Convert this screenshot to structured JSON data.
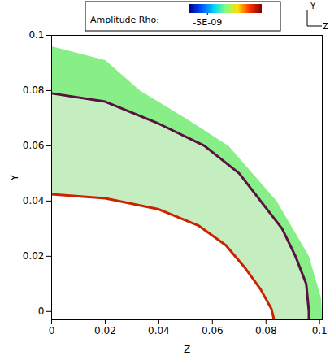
{
  "chart_data": {
    "type": "contour",
    "xlabel": "Z",
    "ylabel": "Y",
    "xlim": [
      0,
      0.101
    ],
    "ylim": [
      -0.003,
      0.1
    ],
    "xticks": [
      0,
      0.02,
      0.04,
      0.06,
      0.08,
      0.1
    ],
    "yticks": [
      0,
      0.02,
      0.04,
      0.06,
      0.08,
      0.1
    ],
    "series": [
      {
        "type": "area",
        "color": "#88ee88",
        "x": [
          0,
          0.02,
          0.033,
          0.05,
          0.066,
          0.084,
          0.096,
          0.1005,
          0.101,
          0.096,
          0.096,
          0.095,
          0.091,
          0.086,
          0.078,
          0.07,
          0.057,
          0.04,
          0.02,
          0
        ],
        "y": [
          0.096,
          0.091,
          0.08,
          0.07,
          0.06,
          0.04,
          0.02,
          0.005,
          -0.003,
          -0.003,
          0,
          0.01,
          0.02,
          0.03,
          0.04,
          0.05,
          0.06,
          0.068,
          0.076,
          0.079
        ]
      },
      {
        "type": "area",
        "color": "#c4eec0",
        "x": [
          0,
          0.02,
          0.04,
          0.057,
          0.07,
          0.078,
          0.086,
          0.091,
          0.095,
          0.096,
          0.096,
          0.083,
          0.082,
          0.078,
          0.072,
          0.065,
          0.055,
          0.04,
          0.02,
          0
        ],
        "y": [
          0.079,
          0.076,
          0.068,
          0.06,
          0.05,
          0.04,
          0.03,
          0.02,
          0.01,
          0,
          -0.003,
          -0.003,
          0.001,
          0.008,
          0.016,
          0.024,
          0.031,
          0.037,
          0.041,
          0.0425
        ]
      },
      {
        "type": "line",
        "color": "#5a1040",
        "x": [
          0,
          0.02,
          0.04,
          0.057,
          0.07,
          0.078,
          0.086,
          0.091,
          0.095,
          0.096,
          0.096
        ],
        "y": [
          0.079,
          0.076,
          0.068,
          0.06,
          0.05,
          0.04,
          0.03,
          0.02,
          0.01,
          0,
          -0.003
        ]
      },
      {
        "type": "line",
        "color": "#cc2200",
        "x": [
          0,
          0.02,
          0.04,
          0.055,
          0.065,
          0.072,
          0.078,
          0.082,
          0.083
        ],
        "y": [
          0.0425,
          0.041,
          0.037,
          0.031,
          0.024,
          0.016,
          0.008,
          0.001,
          -0.003
        ]
      }
    ],
    "colorbar": {
      "label": "Amplitude Rho:",
      "range": [
        -1e-08,
        1e-08
      ],
      "ticks": [
        {
          "value": -5e-09,
          "label": "-5E-09"
        }
      ]
    },
    "axis_triad": {
      "vertical": "Y",
      "horizontal": "Z"
    }
  }
}
